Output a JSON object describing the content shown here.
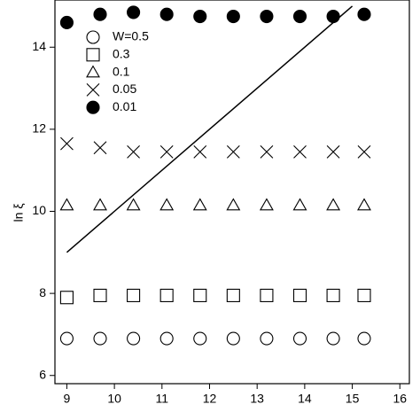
{
  "chart_data": {
    "type": "scatter",
    "y_label": "ln ξ",
    "xlim": [
      8.75,
      16.2
    ],
    "ylim": [
      5.8,
      15.15
    ],
    "xticks": [
      9,
      10,
      11,
      12,
      13,
      14,
      15,
      16
    ],
    "yticks": [
      6,
      8,
      10,
      12,
      14
    ],
    "x": [
      9,
      9.7,
      10.4,
      11.1,
      11.8,
      12.5,
      13.2,
      13.9,
      14.6,
      15.25
    ],
    "series": [
      {
        "name": "W=0.5",
        "marker": "circle",
        "color": "#000000",
        "values": [
          6.9,
          6.9,
          6.9,
          6.9,
          6.9,
          6.9,
          6.9,
          6.9,
          6.9,
          6.9
        ]
      },
      {
        "name": "0.3",
        "marker": "square",
        "color": "#000000",
        "values": [
          7.9,
          7.95,
          7.95,
          7.95,
          7.95,
          7.95,
          7.95,
          7.95,
          7.95,
          7.95
        ]
      },
      {
        "name": "0.1",
        "marker": "triangle",
        "color": "#000000",
        "values": [
          10.15,
          10.15,
          10.15,
          10.15,
          10.15,
          10.15,
          10.15,
          10.15,
          10.15,
          10.15
        ]
      },
      {
        "name": "0.05",
        "marker": "x",
        "color": "#000000",
        "values": [
          11.65,
          11.55,
          11.45,
          11.45,
          11.45,
          11.45,
          11.45,
          11.45,
          11.45,
          11.45
        ]
      },
      {
        "name": "0.01",
        "marker": "filled-circle",
        "color": "#000000",
        "values": [
          14.6,
          14.8,
          14.85,
          14.8,
          14.75,
          14.75,
          14.75,
          14.75,
          14.75,
          14.8
        ]
      }
    ],
    "reference_line": {
      "x": [
        9,
        15
      ],
      "values": [
        9,
        15
      ]
    }
  }
}
